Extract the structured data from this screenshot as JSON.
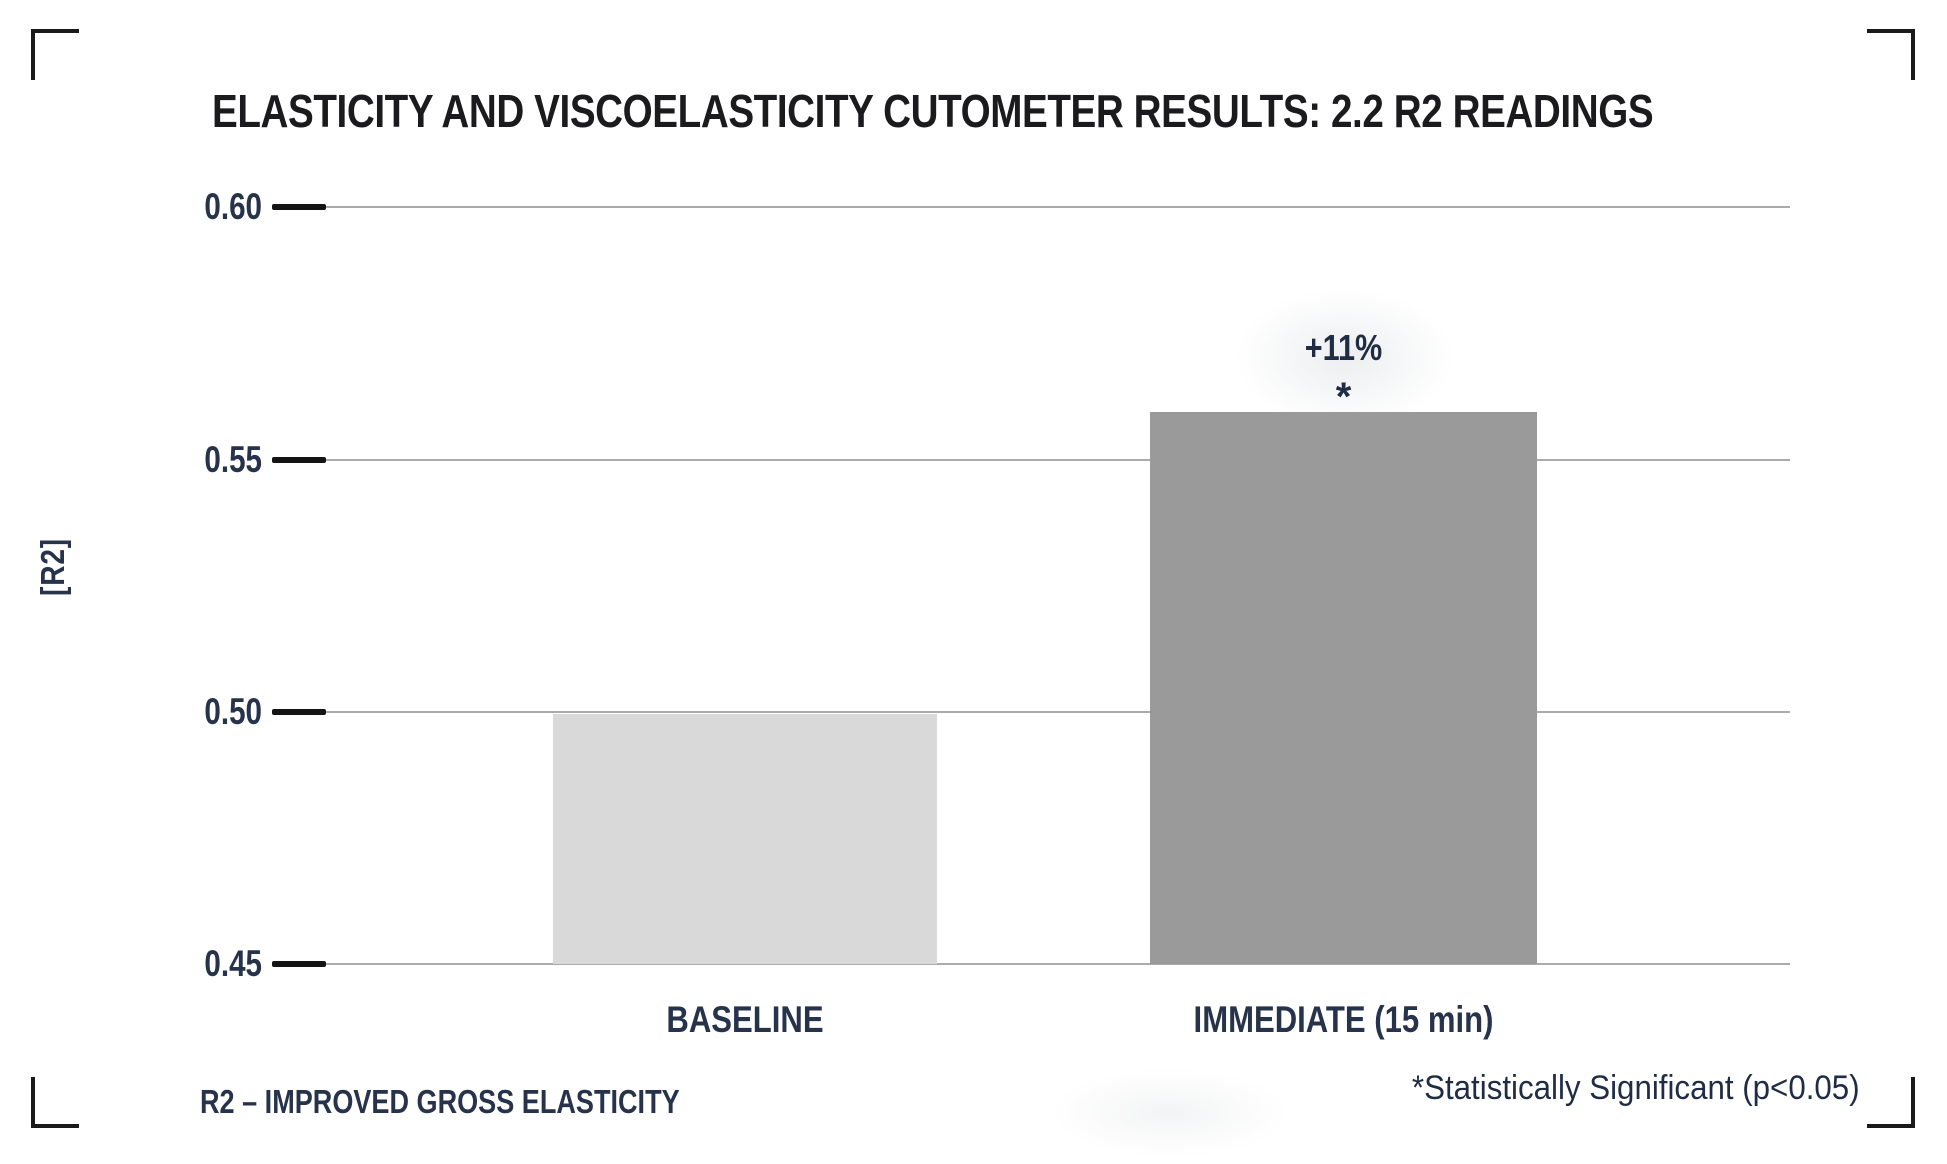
{
  "header": {
    "title": "ELASTICITY AND VISCOELASTICITY CUTOMETER RESULTS: 2.2 R2 READINGS"
  },
  "chart_data": {
    "type": "bar",
    "title": "ELASTICITY AND VISCOELASTICITY CUTOMETER RESULTS: 2.2 R2 READINGS",
    "xlabel": "",
    "ylabel": "[R2]",
    "ylim": [
      0.45,
      0.6
    ],
    "ytick_values": [
      0.6,
      0.55,
      0.5,
      0.45
    ],
    "ytick_labels": [
      "0.60",
      "0.55",
      "0.50",
      "0.45"
    ],
    "categories": [
      "BASELINE",
      "IMMEDIATE (15 min)"
    ],
    "values": [
      0.5,
      0.56
    ],
    "grid": "horizontal",
    "legend_position": "none",
    "annotations": {
      "percent_change": "+11%",
      "significance_marker": "*",
      "annotated_category": "IMMEDIATE (15 min)"
    }
  },
  "footer": {
    "left": "R2 – IMPROVED GROSS ELASTICITY",
    "right": "*Statistically Significant (p<0.05)"
  },
  "colors": {
    "text_navy": "#26334a",
    "title_text": "#1b1b1d",
    "bar_baseline": "#d9d9d9",
    "bar_immediate": "#9a9a9a",
    "gridline": "#ababab",
    "axis_tick": "#141414",
    "bracket": "#1a1a1a"
  }
}
